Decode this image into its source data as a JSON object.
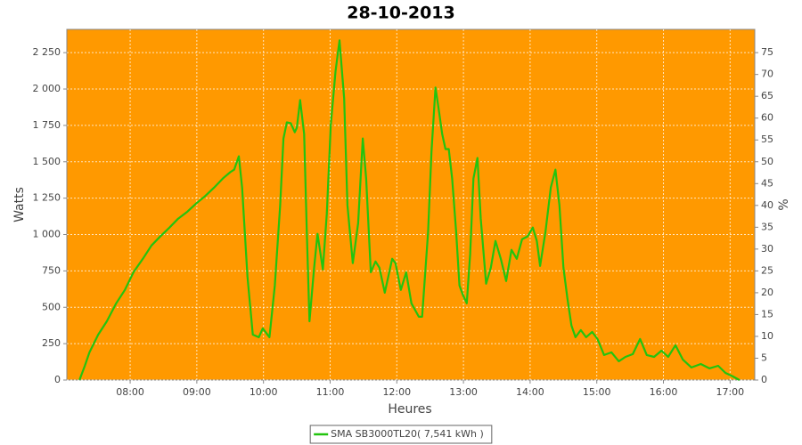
{
  "chart_data": {
    "type": "line",
    "title": "28-10-2013",
    "x_label": "Heures",
    "y_label": "Watts",
    "y2_label": "%",
    "background": "#ff9900",
    "grid": true,
    "legend": "bottom",
    "xlim": [
      7.05,
      17.37
    ],
    "xticks": [
      {
        "value": 8,
        "label": "08:00"
      },
      {
        "value": 9,
        "label": "09:00"
      },
      {
        "value": 10,
        "label": "10:00"
      },
      {
        "value": 11,
        "label": "11:00"
      },
      {
        "value": 12,
        "label": "12:00"
      },
      {
        "value": 13,
        "label": "13:00"
      },
      {
        "value": 14,
        "label": "14:00"
      },
      {
        "value": 15,
        "label": "15:00"
      },
      {
        "value": 16,
        "label": "16:00"
      },
      {
        "value": 17,
        "label": "17:00"
      }
    ],
    "ylim": [
      0,
      2410
    ],
    "yticks": [
      0,
      250,
      500,
      750,
      {
        "value": 1000,
        "label": "1 000"
      },
      {
        "value": 1250,
        "label": "1 250"
      },
      {
        "value": 1500,
        "label": "1 500"
      },
      {
        "value": 1750,
        "label": "1 750"
      },
      {
        "value": 2000,
        "label": "2 000"
      },
      {
        "value": 2250,
        "label": "2 250"
      }
    ],
    "y2lim": [
      0,
      80.33
    ],
    "y2ticks": [
      0,
      5,
      10,
      15,
      20,
      25,
      30,
      35,
      40,
      45,
      50,
      55,
      60,
      65,
      70,
      75
    ],
    "x": [
      7.24,
      7.32,
      7.39,
      7.52,
      7.65,
      7.79,
      7.92,
      8.05,
      8.19,
      8.32,
      8.45,
      8.59,
      8.72,
      8.86,
      8.99,
      9.12,
      9.26,
      9.39,
      9.5,
      9.56,
      9.63,
      9.68,
      9.76,
      9.84,
      9.93,
      9.99,
      10.09,
      10.17,
      10.25,
      10.3,
      10.35,
      10.41,
      10.47,
      10.5,
      10.55,
      10.61,
      10.65,
      10.69,
      10.76,
      10.81,
      10.89,
      10.95,
      11.01,
      11.08,
      11.14,
      11.21,
      11.26,
      11.34,
      11.42,
      11.49,
      11.54,
      11.61,
      11.68,
      11.74,
      11.82,
      11.93,
      11.98,
      12.06,
      12.14,
      12.22,
      12.33,
      12.38,
      12.47,
      12.52,
      12.58,
      12.62,
      12.68,
      12.73,
      12.78,
      12.83,
      12.89,
      12.94,
      12.99,
      13.05,
      13.1,
      13.15,
      13.21,
      13.26,
      13.34,
      13.41,
      13.48,
      13.56,
      13.64,
      13.72,
      13.8,
      13.88,
      13.96,
      14.04,
      14.1,
      14.15,
      14.23,
      14.31,
      14.38,
      14.44,
      14.5,
      14.56,
      14.62,
      14.68,
      14.76,
      14.84,
      14.93,
      15.01,
      15.11,
      15.22,
      15.33,
      15.43,
      15.54,
      15.65,
      15.75,
      15.86,
      15.97,
      16.07,
      16.18,
      16.29,
      16.42,
      16.56,
      16.69,
      16.82,
      16.93,
      17.04,
      17.14
    ],
    "series": [
      {
        "name": "SMA SB3000TL20( 7,541 kWh )",
        "color": "#22c40f",
        "values": [
          0,
          98,
          190,
          312,
          404,
          527,
          619,
          741,
          833,
          925,
          986,
          1048,
          1109,
          1158,
          1213,
          1262,
          1323,
          1385,
          1428,
          1446,
          1538,
          1323,
          711,
          312,
          294,
          355,
          294,
          650,
          1201,
          1660,
          1771,
          1765,
          1703,
          1734,
          1924,
          1691,
          1017,
          404,
          772,
          1005,
          760,
          1140,
          1752,
          2120,
          2334,
          1936,
          1201,
          803,
          1078,
          1660,
          1385,
          741,
          815,
          772,
          600,
          833,
          803,
          619,
          741,
          527,
          435,
          435,
          1017,
          1568,
          2010,
          1887,
          1691,
          1587,
          1587,
          1385,
          1017,
          650,
          588,
          527,
          864,
          1385,
          1526,
          1109,
          662,
          772,
          956,
          833,
          680,
          895,
          833,
          968,
          986,
          1048,
          956,
          784,
          1017,
          1323,
          1446,
          1201,
          772,
          558,
          374,
          294,
          343,
          294,
          331,
          282,
          172,
          190,
          129,
          159,
          178,
          282,
          172,
          159,
          202,
          159,
          239,
          141,
          86,
          110,
          80,
          98,
          49,
          25,
          0
        ]
      }
    ]
  }
}
